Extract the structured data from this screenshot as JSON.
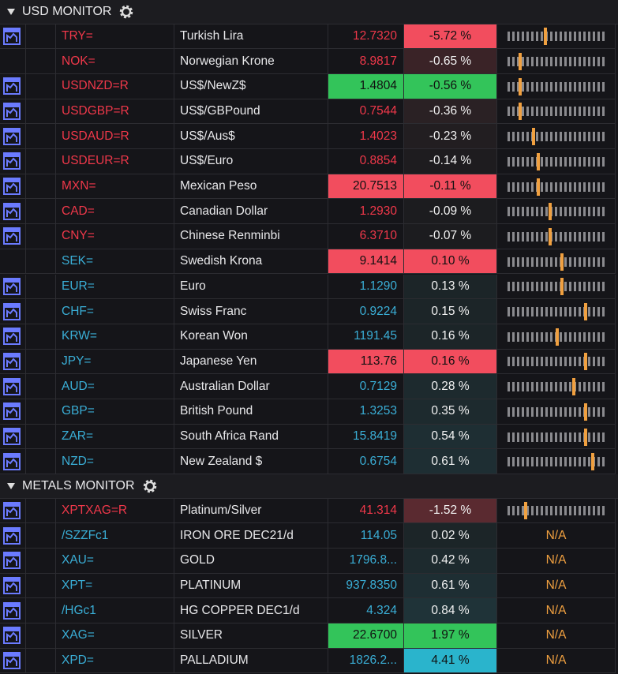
{
  "sections": [
    {
      "title": "USD MONITOR",
      "rows": [
        {
          "icon": true,
          "ric": "TRY=",
          "name": "Turkish Lira",
          "last": "12.7320",
          "change": "-5.72 %",
          "color": "#f0384a",
          "change_bg": "#f24d5e",
          "range": 0.38
        },
        {
          "icon": false,
          "ric": "NOK=",
          "name": "Norwegian Krone",
          "last": "8.9817",
          "change": "-0.65 %",
          "color": "#f0384a",
          "change_bg": "#3a2327",
          "range": 0.13
        },
        {
          "icon": true,
          "ric": "USDNZD=R",
          "name": "US$/NewZ$",
          "last": "1.4804",
          "change": "-0.56 %",
          "color": "#f0384a",
          "last_bg": "#33c45a",
          "change_bg": "#33c45a",
          "range": 0.13
        },
        {
          "icon": true,
          "ric": "USDGBP=R",
          "name": "US$/GBPound",
          "last": "0.7544",
          "change": "-0.36 %",
          "color": "#f0384a",
          "change_bg": "#2a2124",
          "range": 0.13
        },
        {
          "icon": true,
          "ric": "USDAUD=R",
          "name": "US$/Aus$",
          "last": "1.4023",
          "change": "-0.23 %",
          "color": "#f0384a",
          "change_bg": "#221e21",
          "range": 0.26
        },
        {
          "icon": true,
          "ric": "USDEUR=R",
          "name": "US$/Euro",
          "last": "0.8854",
          "change": "-0.14 %",
          "color": "#f0384a",
          "change_bg": "#1e1c1f",
          "range": 0.31
        },
        {
          "icon": true,
          "ric": "MXN=",
          "name": "Mexican Peso",
          "last": "20.7513",
          "change": "-0.11 %",
          "color": "#f0384a",
          "last_bg": "#f24d5e",
          "change_bg": "#f24d5e",
          "range": 0.31
        },
        {
          "icon": true,
          "ric": "CAD=",
          "name": "Canadian Dollar",
          "last": "1.2930",
          "change": "-0.09 %",
          "color": "#f0384a",
          "change_bg": "#1c1c1f",
          "range": 0.43
        },
        {
          "icon": true,
          "ric": "CNY=",
          "name": "Chinese Renminbi",
          "last": "6.3710",
          "change": "-0.07 %",
          "color": "#f0384a",
          "change_bg": "#1c1c1f",
          "range": 0.43
        },
        {
          "icon": false,
          "ric": "SEK=",
          "name": "Swedish Krona",
          "last": "9.1414",
          "change": "0.10 %",
          "color": "#3aaed6",
          "last_bg": "#f24d5e",
          "change_bg": "#f24d5e",
          "range": 0.55
        },
        {
          "icon": true,
          "ric": "EUR=",
          "name": "Euro",
          "last": "1.1290",
          "change": "0.13 %",
          "color": "#3aaed6",
          "change_bg": "#1c2528",
          "range": 0.55
        },
        {
          "icon": true,
          "ric": "CHF=",
          "name": "Swiss Franc",
          "last": "0.9224",
          "change": "0.15 %",
          "color": "#3aaed6",
          "change_bg": "#1c2528",
          "range": 0.79
        },
        {
          "icon": true,
          "ric": "KRW=",
          "name": "Korean Won",
          "last": "1191.45",
          "change": "0.16 %",
          "color": "#3aaed6",
          "change_bg": "#1c2528",
          "range": 0.5
        },
        {
          "icon": true,
          "ric": "JPY=",
          "name": "Japanese Yen",
          "last": "113.76",
          "change": "0.16 %",
          "color": "#3aaed6",
          "last_bg": "#f24d5e",
          "change_bg": "#f24d5e",
          "range": 0.79
        },
        {
          "icon": true,
          "ric": "AUD=",
          "name": "Australian Dollar",
          "last": "0.7129",
          "change": "0.28 %",
          "color": "#3aaed6",
          "change_bg": "#1d2a2e",
          "range": 0.67
        },
        {
          "icon": true,
          "ric": "GBP=",
          "name": "British Pound",
          "last": "1.3253",
          "change": "0.35 %",
          "color": "#3aaed6",
          "change_bg": "#1d2a2e",
          "range": 0.79
        },
        {
          "icon": true,
          "ric": "ZAR=",
          "name": "South Africa Rand",
          "last": "15.8419",
          "change": "0.54 %",
          "color": "#3aaed6",
          "change_bg": "#1e2e33",
          "range": 0.79
        },
        {
          "icon": true,
          "ric": "NZD=",
          "name": "New Zealand $",
          "last": "0.6754",
          "change": "0.61 %",
          "color": "#3aaed6",
          "change_bg": "#1e2e33",
          "range": 0.86
        }
      ]
    },
    {
      "title": "METALS MONITOR",
      "rows": [
        {
          "icon": true,
          "ric": "XPTXAG=R",
          "name": "Platinum/Silver",
          "last": "41.314",
          "change": "-1.52 %",
          "color": "#f0384a",
          "change_bg": "#5a2a30",
          "range": 0.18
        },
        {
          "icon": true,
          "ric": "/SZZFc1",
          "name": "IRON ORE DEC21/d",
          "last": "114.05",
          "change": "0.02 %",
          "color": "#3aaed6",
          "change_bg": "#1c2528",
          "range_text": "N/A"
        },
        {
          "icon": true,
          "ric": "XAU=",
          "name": "GOLD",
          "last": "1796.8...",
          "change": "0.42 %",
          "color": "#3aaed6",
          "change_bg": "#1d2a2e",
          "range_text": "N/A"
        },
        {
          "icon": true,
          "ric": "XPT=",
          "name": "PLATINUM",
          "last": "937.8350",
          "change": "0.61 %",
          "color": "#3aaed6",
          "change_bg": "#1e2e33",
          "range_text": "N/A"
        },
        {
          "icon": true,
          "ric": "/HGc1",
          "name": "HG COPPER DEC1/d",
          "last": "4.324",
          "change": "0.84 %",
          "color": "#3aaed6",
          "change_bg": "#1f3338",
          "range_text": "N/A"
        },
        {
          "icon": true,
          "ric": "XAG=",
          "name": "SILVER",
          "last": "22.6700",
          "change": "1.97 %",
          "color": "#3aaed6",
          "last_bg": "#33c45a",
          "change_bg": "#33c45a",
          "range_text": "N/A"
        },
        {
          "icon": true,
          "ric": "XPD=",
          "name": "PALLADIUM",
          "last": "1826.2...",
          "change": "4.41 %",
          "color": "#3aaed6",
          "change_bg": "#2ab4cc",
          "range_text": "N/A"
        }
      ]
    }
  ]
}
